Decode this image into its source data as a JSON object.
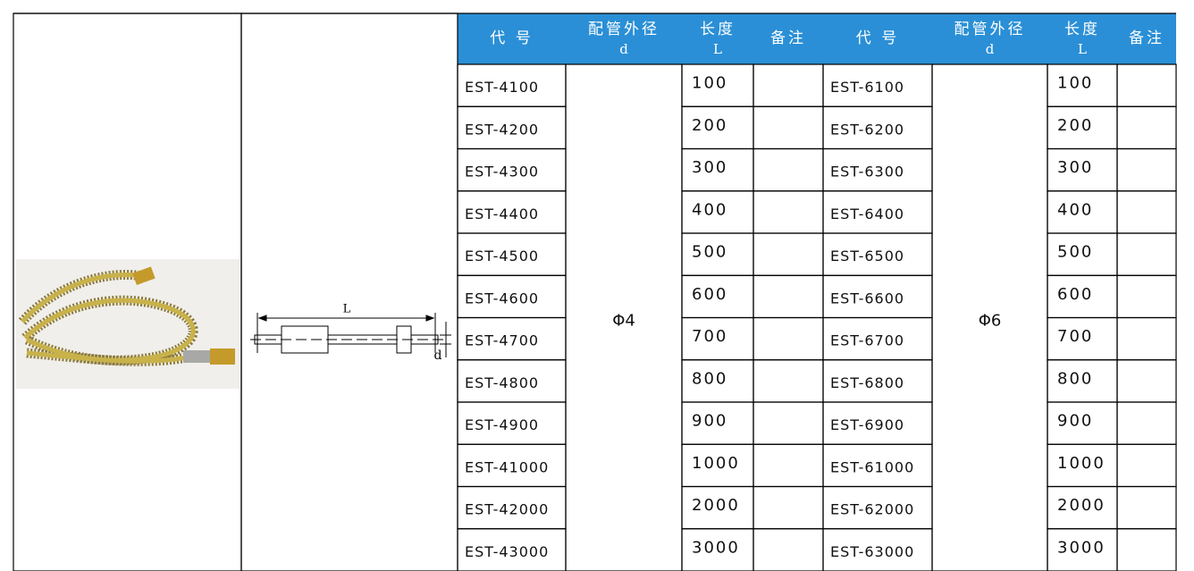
{
  "table": {
    "headers": [
      {
        "text": "代 号"
      },
      {
        "text": "配管外径",
        "symbol": "d"
      },
      {
        "text": "长度",
        "symbol": "L"
      },
      {
        "text": "备注"
      },
      {
        "text": "代 号"
      },
      {
        "text": "配管外径",
        "symbol": "d"
      },
      {
        "text": "长度",
        "symbol": "L"
      },
      {
        "text": "备注"
      }
    ],
    "groups": [
      {
        "diameter": "Φ4",
        "rows": [
          {
            "code": "EST-4100",
            "length": 100
          },
          {
            "code": "EST-4200",
            "length": 200
          },
          {
            "code": "EST-4300",
            "length": 300
          },
          {
            "code": "EST-4400",
            "length": 400
          },
          {
            "code": "EST-4500",
            "length": 500
          },
          {
            "code": "EST-4600",
            "length": 600
          },
          {
            "code": "EST-4700",
            "length": 700
          },
          {
            "code": "EST-4800",
            "length": 800
          },
          {
            "code": "EST-4900",
            "length": 900
          },
          {
            "code": "EST-41000",
            "length": 1000
          },
          {
            "code": "EST-42000",
            "length": 2000
          },
          {
            "code": "EST-43000",
            "length": 3000
          }
        ]
      },
      {
        "diameter": "Φ6",
        "rows": [
          {
            "code": "EST-6100",
            "length": 100
          },
          {
            "code": "EST-6200",
            "length": 200
          },
          {
            "code": "EST-6300",
            "length": 300
          },
          {
            "code": "EST-6400",
            "length": 400
          },
          {
            "code": "EST-6500",
            "length": 500
          },
          {
            "code": "EST-6600",
            "length": 600
          },
          {
            "code": "EST-6700",
            "length": 700
          },
          {
            "code": "EST-6800",
            "length": 800
          },
          {
            "code": "EST-6900",
            "length": 900
          },
          {
            "code": "EST-61000",
            "length": 1000
          },
          {
            "code": "EST-62000",
            "length": 2000
          },
          {
            "code": "EST-63000",
            "length": 3000
          }
        ]
      }
    ]
  },
  "diagram": {
    "length_label": "L",
    "diameter_label": "d"
  }
}
